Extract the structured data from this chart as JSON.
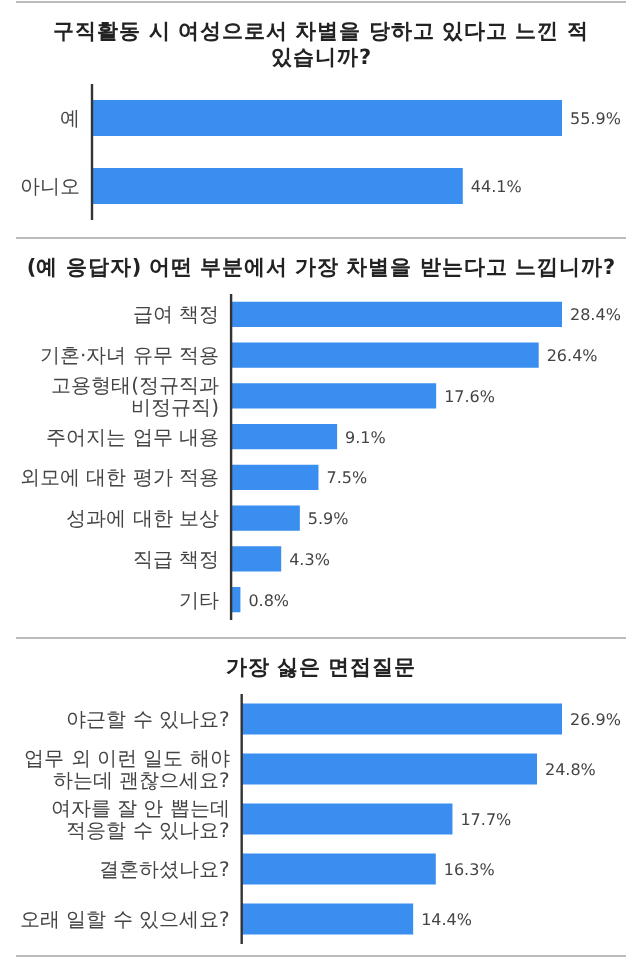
{
  "chart_data": [
    {
      "type": "bar",
      "orientation": "horizontal",
      "title": "구직활동 시 여성으로서 차별을 당하고 있다고 느낀 적 있습니까?",
      "categories": [
        "예",
        "아니오"
      ],
      "values": [
        55.9,
        44.1
      ],
      "color": "#3a8ef0",
      "value_labels": [
        "55.9%",
        "44.1%"
      ]
    },
    {
      "type": "bar",
      "orientation": "horizontal",
      "title": "(예 응답자) 어떤 부분에서 가장 차별을 받는다고 느낍니까?",
      "categories": [
        "급여 책정",
        "기혼·자녀 유무 적용",
        "고용형태(정규직과 비정규직)",
        "주어지는 업무 내용",
        "외모에 대한 평가 적용",
        "성과에 대한 보상",
        "직급 책정",
        "기타"
      ],
      "values": [
        28.4,
        26.4,
        17.6,
        9.1,
        7.5,
        5.9,
        4.3,
        0.8
      ],
      "color": "#3a8ef0",
      "value_labels": [
        "28.4%",
        "26.4%",
        "17.6%",
        "9.1%",
        "7.5%",
        "5.9%",
        "4.3%",
        "0.8%"
      ]
    },
    {
      "type": "bar",
      "orientation": "horizontal",
      "title": "가장 싫은 면접질문",
      "categories": [
        "야근할 수 있나요?",
        "업무 외 이런 일도 해야 하는데 괜찮으세요?",
        "여자를 잘 안 뽑는데 적응할 수 있나요?",
        "결혼하셨나요?",
        "오래 일할 수 있으세요?"
      ],
      "values": [
        26.9,
        24.8,
        17.7,
        16.3,
        14.4
      ],
      "color": "#3a8ef0",
      "value_labels": [
        "26.9%",
        "24.8%",
        "17.7%",
        "16.3%",
        "14.4%"
      ]
    }
  ]
}
